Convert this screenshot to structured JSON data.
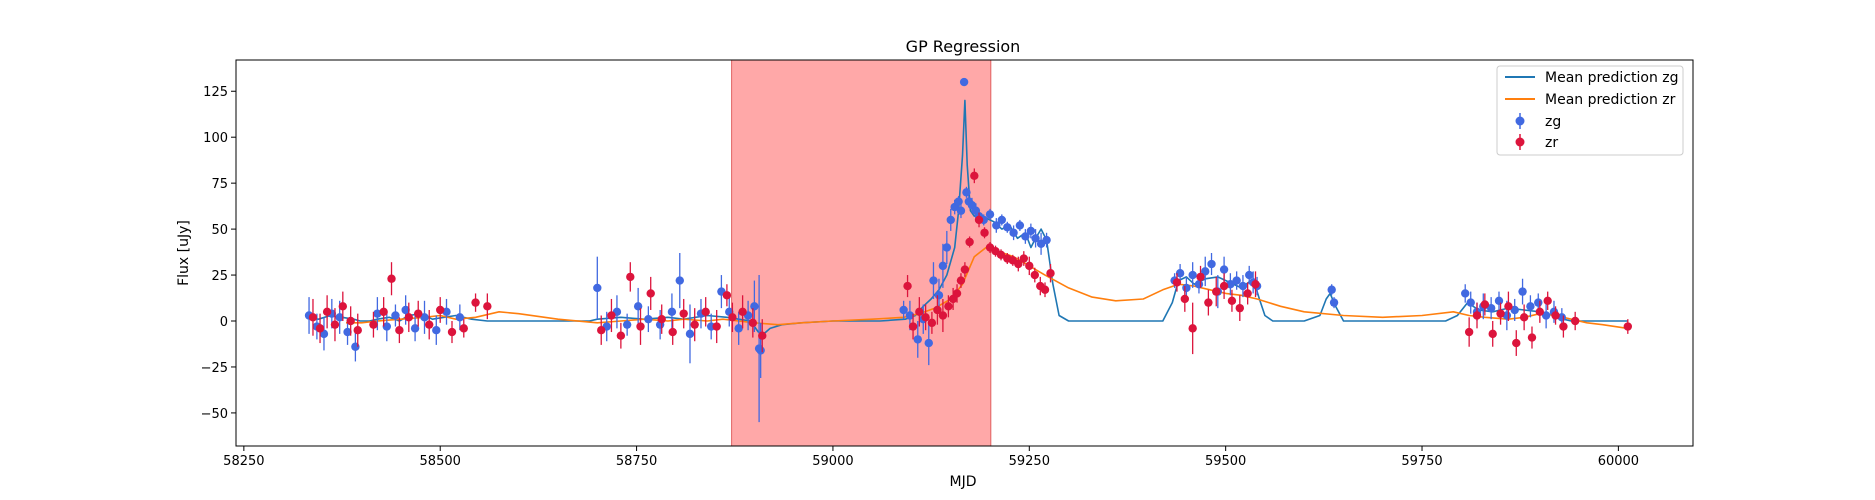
{
  "chart_data": {
    "type": "scatter",
    "title": "GP Regression",
    "xlabel": "MJD",
    "ylabel": "Flux [uJy]",
    "xlim": [
      58240,
      60095
    ],
    "ylim": [
      -68,
      142
    ],
    "xticks": [
      58250,
      58500,
      58750,
      59000,
      59250,
      59500,
      59750,
      60000
    ],
    "yticks": [
      -50,
      -25,
      0,
      25,
      50,
      75,
      100,
      125
    ],
    "legend_position": "top-right",
    "shaded_region": {
      "x": [
        58871,
        59201
      ],
      "color": "#ff9999"
    },
    "series": [
      {
        "name": "Mean prediction zg",
        "kind": "line",
        "color": "#1f77b4",
        "x": [
          58330,
          58345,
          58360,
          58375,
          58390,
          58398,
          58410,
          58420,
          58435,
          58448,
          58460,
          58475,
          58490,
          58505,
          58520,
          58540,
          58560,
          58600,
          58690,
          58700,
          58730,
          58760,
          58790,
          58810,
          58840,
          58865,
          58880,
          58895,
          58905,
          58912,
          58920,
          58935,
          58960,
          59000,
          59060,
          59092,
          59105,
          59115,
          59125,
          59135,
          59145,
          59155,
          59160,
          59165,
          59168,
          59171,
          59175,
          59180,
          59185,
          59195,
          59205,
          59215,
          59225,
          59235,
          59245,
          59252,
          59258,
          59265,
          59272,
          59280,
          59288,
          59300,
          59360,
          59420,
          59432,
          59440,
          59450,
          59460,
          59475,
          59490,
          59505,
          59520,
          59535,
          59543,
          59550,
          59560,
          59600,
          59620,
          59628,
          59633,
          59640,
          59650,
          59700,
          59780,
          59795,
          59808,
          59822,
          59840,
          59860,
          59880,
          59900,
          59918,
          59930,
          59940,
          59960,
          60000,
          60012
        ],
        "y": [
          2,
          1,
          3,
          2,
          1,
          0,
          0,
          1,
          2,
          0,
          3,
          4,
          1,
          2,
          3,
          1,
          0,
          0,
          0,
          1,
          2,
          1,
          2,
          1,
          3,
          2,
          1,
          0,
          -6,
          -7,
          -4,
          -2,
          -1,
          0,
          0,
          1,
          3,
          8,
          12,
          17,
          25,
          40,
          60,
          90,
          120,
          85,
          60,
          57,
          58,
          56,
          54,
          50,
          52,
          45,
          48,
          40,
          45,
          50,
          44,
          20,
          3,
          0,
          0,
          0,
          10,
          22,
          24,
          20,
          23,
          24,
          21,
          18,
          23,
          12,
          3,
          0,
          0,
          3,
          12,
          15,
          8,
          0,
          0,
          0,
          3,
          10,
          6,
          5,
          7,
          6,
          5,
          3,
          1,
          0,
          0,
          0,
          0
        ]
      },
      {
        "name": "Mean prediction zr",
        "kind": "line",
        "color": "#ff7f0e",
        "x": [
          58380,
          58400,
          58420,
          58450,
          58480,
          58500,
          58520,
          58545,
          58575,
          58600,
          58650,
          58700,
          58730,
          58760,
          58790,
          58810,
          58840,
          58860,
          58880,
          58900,
          58930,
          58960,
          59000,
          59050,
          59090,
          59110,
          59130,
          59150,
          59165,
          59180,
          59195,
          59210,
          59230,
          59250,
          59270,
          59300,
          59330,
          59360,
          59395,
          59420,
          59440,
          59460,
          59480,
          59500,
          59520,
          59540,
          59570,
          59600,
          59650,
          59700,
          59750,
          59790,
          59810,
          59830,
          59860,
          59880,
          59900,
          59920,
          59940,
          59960,
          59980,
          60012
        ],
        "y": [
          -1,
          -1,
          0,
          1,
          2,
          3,
          1,
          2,
          5,
          4,
          1,
          -1,
          0,
          1,
          0,
          1,
          0,
          1,
          0,
          -1,
          -2,
          -1,
          0,
          1,
          2,
          4,
          7,
          12,
          20,
          35,
          40,
          38,
          35,
          30,
          25,
          18,
          13,
          11,
          12,
          17,
          20,
          19,
          17,
          15,
          14,
          12,
          8,
          5,
          3,
          2,
          3,
          5,
          3,
          2,
          1,
          2,
          4,
          3,
          1,
          -1,
          -2,
          -4
        ]
      },
      {
        "name": "zg",
        "kind": "errorbar",
        "color": "#4169e1",
        "x": [
          58333,
          58343,
          58352,
          58362,
          58372,
          58382,
          58392,
          58420,
          58432,
          58443,
          58456,
          58468,
          58480,
          58495,
          58508,
          58525,
          58700,
          58712,
          58725,
          58738,
          58752,
          58765,
          58780,
          58795,
          58805,
          58818,
          58832,
          58845,
          58858,
          58868,
          58880,
          58892,
          58900,
          58906,
          58908,
          59090,
          59098,
          59108,
          59115,
          59122,
          59128,
          59135,
          59140,
          59145,
          59150,
          59155,
          59160,
          59163,
          59167,
          59170,
          59173,
          59177,
          59182,
          59186,
          59192,
          59200,
          59208,
          59215,
          59222,
          59230,
          59238,
          59245,
          59252,
          59258,
          59265,
          59272,
          59435,
          59442,
          59450,
          59458,
          59466,
          59474,
          59482,
          59490,
          59498,
          59506,
          59514,
          59522,
          59530,
          59535,
          59540,
          59635,
          59638,
          59805,
          59812,
          59820,
          59828,
          59838,
          59848,
          59858,
          59868,
          59878,
          59888,
          59898,
          59908,
          59918,
          59928
        ],
        "y": [
          3,
          -3,
          -7,
          4,
          2,
          -6,
          -14,
          4,
          -3,
          3,
          6,
          -4,
          2,
          -5,
          5,
          2,
          18,
          -3,
          5,
          -2,
          8,
          1,
          -2,
          5,
          22,
          -7,
          4,
          -3,
          16,
          5,
          -4,
          3,
          8,
          -15,
          -16,
          6,
          3,
          -10,
          1,
          -12,
          22,
          14,
          30,
          40,
          55,
          62,
          65,
          60,
          130,
          70,
          65,
          63,
          60,
          57,
          55,
          58,
          52,
          55,
          51,
          48,
          52,
          46,
          49,
          45,
          42,
          44,
          22,
          26,
          18,
          25,
          20,
          27,
          31,
          16,
          28,
          20,
          22,
          19,
          25,
          21,
          19,
          17,
          10,
          15,
          10,
          5,
          8,
          7,
          11,
          3,
          6,
          16,
          8,
          10,
          3,
          5,
          2
        ],
        "err": [
          10,
          7,
          9,
          8,
          9,
          7,
          8,
          9,
          8,
          6,
          8,
          7,
          9,
          8,
          7,
          7,
          17,
          8,
          9,
          6,
          10,
          7,
          8,
          10,
          15,
          16,
          8,
          7,
          9,
          8,
          9,
          8,
          14,
          40,
          15,
          5,
          8,
          10,
          8,
          12,
          10,
          9,
          12,
          9,
          6,
          4,
          3,
          4,
          2,
          3,
          3,
          4,
          4,
          3,
          3,
          3,
          4,
          3,
          3,
          4,
          3,
          4,
          4,
          5,
          6,
          4,
          4,
          5,
          6,
          7,
          5,
          8,
          6,
          9,
          7,
          6,
          5,
          6,
          5,
          6,
          5,
          3,
          3,
          5,
          6,
          5,
          7,
          6,
          5,
          8,
          6,
          7,
          6,
          5,
          7,
          6,
          5
        ]
      },
      {
        "name": "zr",
        "kind": "errorbar",
        "color": "#dc143c",
        "x": [
          58338,
          58347,
          58356,
          58366,
          58376,
          58386,
          58395,
          58415,
          58428,
          58438,
          58448,
          58460,
          58472,
          58486,
          58500,
          58515,
          58530,
          58545,
          58560,
          58705,
          58718,
          58730,
          58742,
          58755,
          58768,
          58782,
          58796,
          58810,
          58824,
          58838,
          58852,
          58865,
          58872,
          58885,
          58898,
          58910,
          59095,
          59102,
          59110,
          59118,
          59126,
          59133,
          59140,
          59147,
          59153,
          59158,
          59163,
          59168,
          59174,
          59180,
          59186,
          59193,
          59200,
          59207,
          59214,
          59222,
          59229,
          59236,
          59243,
          59250,
          59257,
          59264,
          59270,
          59277,
          59438,
          59448,
          59458,
          59468,
          59478,
          59488,
          59498,
          59508,
          59518,
          59528,
          59538,
          59810,
          59820,
          59830,
          59840,
          59850,
          59860,
          59870,
          59880,
          59890,
          59900,
          59910,
          59920,
          59930,
          59945,
          60012
        ],
        "y": [
          2,
          -4,
          5,
          -2,
          8,
          0,
          -5,
          -2,
          5,
          23,
          -5,
          2,
          4,
          -2,
          6,
          -6,
          -4,
          10,
          8,
          -5,
          3,
          -8,
          24,
          -3,
          15,
          1,
          -6,
          4,
          -2,
          5,
          -3,
          14,
          2,
          5,
          -1,
          -8,
          19,
          -3,
          5,
          2,
          -1,
          6,
          3,
          8,
          12,
          15,
          22,
          28,
          43,
          79,
          55,
          48,
          40,
          38,
          36,
          34,
          33,
          31,
          34,
          30,
          25,
          19,
          17,
          26,
          21,
          12,
          -4,
          24,
          10,
          16,
          19,
          11,
          7,
          15,
          20,
          -6,
          3,
          9,
          -7,
          4,
          8,
          -12,
          2,
          -9,
          5,
          11,
          3,
          -3,
          0,
          -3
        ],
        "err": [
          10,
          8,
          9,
          9,
          8,
          8,
          9,
          7,
          8,
          9,
          7,
          8,
          7,
          8,
          7,
          6,
          5,
          5,
          7,
          8,
          9,
          7,
          8,
          10,
          9,
          8,
          7,
          8,
          9,
          8,
          9,
          6,
          8,
          9,
          8,
          9,
          6,
          7,
          8,
          7,
          6,
          8,
          9,
          6,
          6,
          5,
          4,
          4,
          3,
          4,
          4,
          3,
          3,
          3,
          3,
          3,
          3,
          4,
          4,
          5,
          4,
          5,
          4,
          5,
          5,
          7,
          14,
          6,
          7,
          8,
          7,
          6,
          7,
          6,
          7,
          8,
          7,
          6,
          7,
          6,
          8,
          7,
          7,
          6,
          6,
          5,
          5,
          6,
          5,
          4
        ]
      }
    ]
  }
}
